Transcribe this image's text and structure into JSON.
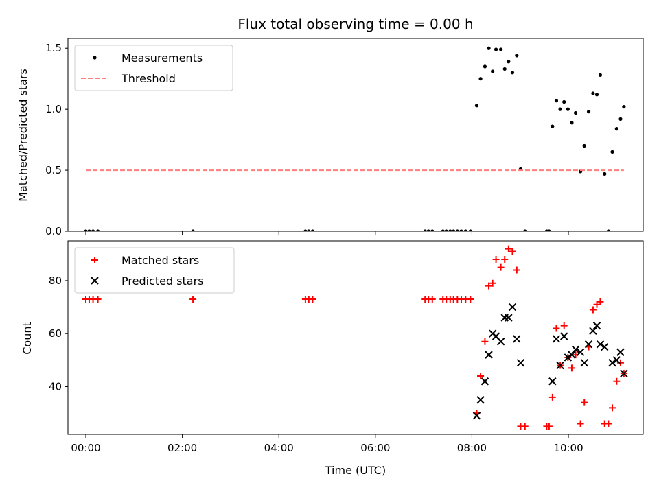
{
  "chart_data": {
    "title": "Flux total observing time = 0.00 h",
    "xlabel": "Time (UTC)",
    "x_unit": "hours since 00:00 UTC",
    "xlim": [
      -0.37,
      11.55
    ],
    "x_tick_values": [
      0,
      2,
      4,
      6,
      8,
      10
    ],
    "x_tick_labels": [
      "00:00",
      "02:00",
      "04:00",
      "06:00",
      "08:00",
      "10:00"
    ],
    "panels": [
      {
        "type": "scatter",
        "ylabel": "Matched/Predicted stars",
        "ylim": [
          0,
          1.58
        ],
        "y_tick_values": [
          0,
          0.5,
          1.0,
          1.5
        ],
        "y_tick_labels": [
          "0.0",
          "0.5",
          "1.0",
          "1.5"
        ],
        "legend_position": "top-left",
        "series": [
          {
            "name": "Measurements",
            "marker": "dot",
            "color": "#000000",
            "points": [
              [
                0.0,
                0
              ],
              [
                0.07,
                0
              ],
              [
                0.15,
                0
              ],
              [
                0.25,
                0
              ],
              [
                2.22,
                0
              ],
              [
                4.55,
                0
              ],
              [
                4.62,
                0
              ],
              [
                4.7,
                0
              ],
              [
                7.03,
                0
              ],
              [
                7.1,
                0
              ],
              [
                7.18,
                0
              ],
              [
                7.4,
                0
              ],
              [
                7.47,
                0
              ],
              [
                7.55,
                0
              ],
              [
                7.62,
                0
              ],
              [
                7.7,
                0
              ],
              [
                7.78,
                0
              ],
              [
                7.87,
                0
              ],
              [
                7.97,
                0
              ],
              [
                8.1,
                1.03
              ],
              [
                8.18,
                1.25
              ],
              [
                8.27,
                1.35
              ],
              [
                8.35,
                1.5
              ],
              [
                8.43,
                1.31
              ],
              [
                8.5,
                1.49
              ],
              [
                8.6,
                1.49
              ],
              [
                8.68,
                1.33
              ],
              [
                8.76,
                1.39
              ],
              [
                8.84,
                1.3
              ],
              [
                8.93,
                1.44
              ],
              [
                9.01,
                0.51
              ],
              [
                9.1,
                0
              ],
              [
                9.55,
                0
              ],
              [
                9.6,
                0
              ],
              [
                9.67,
                0.86
              ],
              [
                9.75,
                1.07
              ],
              [
                9.83,
                1.0
              ],
              [
                9.91,
                1.06
              ],
              [
                9.99,
                1.0
              ],
              [
                10.07,
                0.89
              ],
              [
                10.15,
                0.97
              ],
              [
                10.25,
                0.49
              ],
              [
                10.33,
                0.7
              ],
              [
                10.42,
                0.98
              ],
              [
                10.51,
                1.13
              ],
              [
                10.59,
                1.12
              ],
              [
                10.66,
                1.28
              ],
              [
                10.75,
                0.47
              ],
              [
                10.83,
                0
              ],
              [
                10.91,
                0.65
              ],
              [
                11.0,
                0.84
              ],
              [
                11.08,
                0.92
              ],
              [
                11.15,
                1.02
              ]
            ]
          },
          {
            "name": "Threshold",
            "style": "dashed",
            "color": "#ff7f7f",
            "points": [
              [
                0.0,
                0.5
              ],
              [
                11.15,
                0.5
              ]
            ]
          }
        ]
      },
      {
        "type": "scatter",
        "ylabel": "Count",
        "ylim": [
          22,
          95
        ],
        "y_tick_values": [
          40,
          60,
          80
        ],
        "y_tick_labels": [
          "40",
          "60",
          "80"
        ],
        "legend_position": "top-left",
        "series": [
          {
            "name": "Matched stars",
            "marker": "plus",
            "color": "#ff0000",
            "points": [
              [
                0.0,
                73
              ],
              [
                0.07,
                73
              ],
              [
                0.15,
                73
              ],
              [
                0.25,
                73
              ],
              [
                2.22,
                73
              ],
              [
                4.55,
                73
              ],
              [
                4.62,
                73
              ],
              [
                4.7,
                73
              ],
              [
                7.03,
                73
              ],
              [
                7.1,
                73
              ],
              [
                7.18,
                73
              ],
              [
                7.4,
                73
              ],
              [
                7.47,
                73
              ],
              [
                7.55,
                73
              ],
              [
                7.62,
                73
              ],
              [
                7.7,
                73
              ],
              [
                7.78,
                73
              ],
              [
                7.87,
                73
              ],
              [
                7.97,
                73
              ],
              [
                8.1,
                30
              ],
              [
                8.18,
                44
              ],
              [
                8.27,
                57
              ],
              [
                8.35,
                78
              ],
              [
                8.43,
                79
              ],
              [
                8.5,
                88
              ],
              [
                8.6,
                85
              ],
              [
                8.68,
                88
              ],
              [
                8.76,
                92
              ],
              [
                8.84,
                91
              ],
              [
                8.93,
                84
              ],
              [
                9.01,
                25
              ],
              [
                9.1,
                25
              ],
              [
                9.55,
                25
              ],
              [
                9.6,
                25
              ],
              [
                9.67,
                36
              ],
              [
                9.75,
                62
              ],
              [
                9.83,
                48
              ],
              [
                9.91,
                63
              ],
              [
                9.99,
                51
              ],
              [
                10.07,
                47
              ],
              [
                10.15,
                52
              ],
              [
                10.25,
                26
              ],
              [
                10.33,
                34
              ],
              [
                10.42,
                55
              ],
              [
                10.51,
                69
              ],
              [
                10.59,
                71
              ],
              [
                10.66,
                72
              ],
              [
                10.75,
                26
              ],
              [
                10.83,
                26
              ],
              [
                10.91,
                32
              ],
              [
                11.0,
                42
              ],
              [
                11.08,
                49
              ],
              [
                11.15,
                45
              ]
            ]
          },
          {
            "name": "Predicted stars",
            "marker": "x",
            "color": "#000000",
            "points": [
              [
                8.1,
                29
              ],
              [
                8.18,
                35
              ],
              [
                8.27,
                42
              ],
              [
                8.35,
                52
              ],
              [
                8.43,
                60
              ],
              [
                8.5,
                59
              ],
              [
                8.6,
                57
              ],
              [
                8.68,
                66
              ],
              [
                8.76,
                66
              ],
              [
                8.84,
                70
              ],
              [
                8.93,
                58
              ],
              [
                9.01,
                49
              ],
              [
                9.67,
                42
              ],
              [
                9.75,
                58
              ],
              [
                9.83,
                48
              ],
              [
                9.91,
                59
              ],
              [
                9.99,
                51
              ],
              [
                10.07,
                52
              ],
              [
                10.15,
                54
              ],
              [
                10.25,
                53
              ],
              [
                10.33,
                49
              ],
              [
                10.42,
                56
              ],
              [
                10.51,
                61
              ],
              [
                10.59,
                63
              ],
              [
                10.66,
                56
              ],
              [
                10.75,
                55
              ],
              [
                10.91,
                49
              ],
              [
                11.0,
                50
              ],
              [
                11.08,
                53
              ],
              [
                11.15,
                45
              ]
            ]
          }
        ]
      }
    ]
  }
}
